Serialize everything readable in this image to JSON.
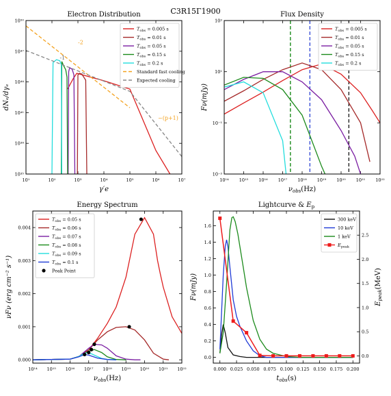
{
  "figure": {
    "suptitle": "C3R15Γ1900"
  },
  "chart_data": [
    {
      "id": "electron",
      "type": "line",
      "title": "Electron Distribution",
      "xlabel": "γ′e",
      "ylabel": "dNₑ/dγₑ",
      "xscale": "log",
      "yscale": "log",
      "xlim": [
        10.0,
        10000000.0
      ],
      "ylim": [
        1e+35,
        1e+50
      ],
      "xticks": [
        10.0,
        100.0,
        1000.0,
        10000.0,
        100000.0,
        1000000.0,
        10000000.0
      ],
      "xtick_labels": [
        "10¹",
        "10²",
        "10³",
        "10⁴",
        "10⁵",
        "10⁶",
        "10⁷"
      ],
      "yticks": [
        1e+35,
        1e+38,
        1e+41,
        1e+44,
        1e+47,
        1e+50
      ],
      "ytick_labels": [
        "10³⁵",
        "10³⁸",
        "10⁴¹",
        "10⁴⁴",
        "10⁴⁷",
        "10⁵⁰"
      ],
      "legend_position": "top-right",
      "series": [
        {
          "name": "T_obs = 0.005 s",
          "label_sym": "T",
          "label_sub": "obs",
          "label_rest": " = 0.005 s",
          "color": "#dc1f1f",
          "x": [
            400,
            650,
            900,
            10000.0,
            100000.0,
            1000000.0,
            3500000.0
          ],
          "y": [
            2e+43,
            2e+44,
            7e+44,
            1.3e+44,
            2e+43,
            2e+37,
            1e+35
          ]
        },
        {
          "name": "T_obs = 0.01 s",
          "label_sym": "T",
          "label_sub": "obs",
          "label_rest": " = 0.01 s",
          "color": "#a52a2a",
          "x": [
            950,
            1000,
            1150,
            1400,
            2000,
            2200
          ],
          "y": [
            1e+35,
            5e+44,
            7e+44,
            6e+44,
            1.5e+44,
            1e+35
          ]
        },
        {
          "name": "T_obs = 0.05 s",
          "label_sym": "T",
          "label_sub": "obs",
          "label_rest": " = 0.05 s",
          "color": "#7b1fa2",
          "x": [
            420,
            440,
            480,
            600,
            700,
            760
          ],
          "y": [
            1e+35,
            1e+45,
            2.5e+45,
            1.7e+45,
            5e+44,
            1e+35
          ]
        },
        {
          "name": "T_obs = 0.15 s",
          "label_sym": "T",
          "label_sub": "obs",
          "label_rest": " = 0.15 s",
          "color": "#1b8a1b",
          "x": [
            230,
            240,
            280,
            340,
            380,
            400
          ],
          "y": [
            1e+35,
            1e+46,
            4e+45,
            1.5e+45,
            3e+44,
            1e+35
          ]
        },
        {
          "name": "T_obs = 0.2 s",
          "label_sym": "T",
          "label_sub": "obs",
          "label_rest": " = 0.2 s",
          "color": "#22dddd",
          "x": [
            100,
            110,
            150,
            200,
            230,
            240
          ],
          "y": [
            1e+35,
            8e+45,
            1.5e+46,
            1.2e+46,
            5e+45,
            1e+35
          ]
        },
        {
          "name": "Standard fast cooling",
          "color": "#f4a21f",
          "dash": "5,3",
          "x": [
            10,
            100000.0
          ],
          "y": [
            3e+49,
            3e+41
          ]
        },
        {
          "name": "Expected cooling",
          "color": "#888888",
          "dash": "5,3",
          "x": [
            10,
            100000.0,
            10000000.0
          ],
          "y": [
            1.2e+47,
            1.2e+43,
            5e+36
          ]
        }
      ],
      "annotations": [
        {
          "text": "-2",
          "color": "#f4a21f",
          "x": 1000.0,
          "y": 5e+47
        },
        {
          "text": "-1",
          "color": "#666666",
          "x": 200,
          "y": 1.5e+46
        },
        {
          "text": "−(p+1)",
          "color": "#f4a21f",
          "x": 1200000.0,
          "y": 2e+40
        }
      ]
    },
    {
      "id": "flux",
      "type": "line",
      "title": "Flux Density",
      "xlabel": "ν_obs(Hz)",
      "ylabel": "Fν(mJy)",
      "xscale": "log",
      "yscale": "log",
      "xlim": [
        100000000000000.0,
        1e+22
      ],
      "ylim": [
        0.001,
        1000.0
      ],
      "xticks": [
        100000000000000.0,
        1000000000000000.0,
        1e+16,
        1e+17,
        1e+18,
        1e+19,
        1e+20,
        1e+21,
        1e+22
      ],
      "xtick_labels": [
        "10¹⁴",
        "10¹⁵",
        "10¹⁶",
        "10¹⁷",
        "10¹⁸",
        "10¹⁹",
        "10²⁰",
        "10²¹",
        "10²²"
      ],
      "yticks": [
        0.001,
        0.1,
        10.0,
        1000.0
      ],
      "ytick_labels": [
        "10⁻³",
        "10⁻¹",
        "10¹",
        "10³"
      ],
      "legend_position": "top-right",
      "vlines": [
        {
          "x": 2.5e+17,
          "color": "#1b8a1b"
        },
        {
          "x": 2.5e+18,
          "color": "#3a4fd6"
        },
        {
          "x": 2.5e+20,
          "color": "#222222"
        }
      ],
      "series": [
        {
          "name": "T_obs = 0.005 s",
          "label_sym": "T",
          "label_sub": "obs",
          "label_rest": " = 0.005 s",
          "color": "#dc1f1f",
          "x": [
            100000000000000.0,
            1000000000000000.0,
            1e+16,
            1e+17,
            1e+18,
            1e+19,
            1e+20,
            1e+21,
            4e+21,
            1e+22
          ],
          "y": [
            0.22,
            0.6,
            1.6,
            4.5,
            12,
            20,
            8,
            1.5,
            0.3,
            0.1
          ]
        },
        {
          "name": "T_obs = 0.01 s",
          "label_sym": "T",
          "label_sub": "obs",
          "label_rest": " = 0.01 s",
          "color": "#a52a2a",
          "x": [
            100000000000000.0,
            1000000000000000.0,
            1e+16,
            1e+17,
            1e+18,
            1e+19,
            1e+20,
            1e+21,
            3e+21
          ],
          "y": [
            0.7,
            1.8,
            5,
            12,
            22,
            12,
            2,
            0.1,
            0.003
          ]
        },
        {
          "name": "T_obs = 0.05 s",
          "label_sym": "T",
          "label_sub": "obs",
          "label_rest": " = 0.05 s",
          "color": "#7b1fa2",
          "x": [
            100000000000000.0,
            1000000000000000.0,
            1e+16,
            1e+17,
            1e+18,
            1e+19,
            1e+20,
            5e+20,
            1e+21
          ],
          "y": [
            2,
            5,
            10,
            10,
            4,
            0.8,
            0.05,
            0.005,
            0.001
          ]
        },
        {
          "name": "T_obs = 0.15 s",
          "label_sym": "T",
          "label_sub": "obs",
          "label_rest": " = 0.15 s",
          "color": "#1b8a1b",
          "x": [
            100000000000000.0,
            1000000000000000.0,
            1e+16,
            1e+17,
            1e+18,
            1e+19,
            1.5e+19
          ],
          "y": [
            3,
            6,
            5.5,
            2,
            0.2,
            0.002,
            0.001
          ]
        },
        {
          "name": "T_obs = 0.2 s",
          "label_sym": "T",
          "label_sub": "obs",
          "label_rest": " = 0.2 s",
          "color": "#22dddd",
          "x": [
            100000000000000.0,
            1000000000000000.0,
            1e+16,
            1e+17,
            1.5e+17
          ],
          "y": [
            2.5,
            4,
            1.5,
            0.02,
            0.001
          ]
        }
      ]
    },
    {
      "id": "energy",
      "type": "line",
      "title": "Energy Spectrum",
      "xlabel": "ν_obs(Hz)",
      "ylabel": "νFν (erg cm⁻² s⁻¹)",
      "xscale": "log",
      "yscale": "linear",
      "xlim": [
        100000000000000.0,
        1e+22
      ],
      "ylim": [
        -0.0001,
        0.0045
      ],
      "xticks": [
        100000000000000.0,
        1000000000000000.0,
        1e+16,
        1e+17,
        1e+18,
        1e+19,
        1e+20,
        1e+21,
        1e+22
      ],
      "xtick_labels": [
        "10¹⁴",
        "10¹⁵",
        "10¹⁶",
        "10¹⁷",
        "10¹⁸",
        "10¹⁹",
        "10²⁰",
        "10²¹",
        "10²²"
      ],
      "yticks": [
        0,
        0.001,
        0.002,
        0.003,
        0.004
      ],
      "ytick_labels": [
        "0.000",
        "0.001",
        "0.002",
        "0.003",
        "0.004"
      ],
      "legend_position": "top-left",
      "series": [
        {
          "name": "T_obs = 0.05 s",
          "label_sym": "T",
          "label_sub": "obs",
          "label_rest": " = 0.05 s",
          "color": "#dc1f1f",
          "x": [
            100000000000000.0,
            1e+16,
            3e+16,
            1e+17,
            3e+17,
            1e+18,
            3e+18,
            1e+19,
            3e+19,
            1e+20,
            3e+20,
            5e+20,
            7e+20,
            1e+21,
            3e+21,
            1e+22
          ],
          "y": [
            0,
            2e-05,
            0.0001,
            0.0003,
            0.00065,
            0.0011,
            0.0016,
            0.0025,
            0.0038,
            0.0043,
            0.0038,
            0.003,
            0.0026,
            0.0022,
            0.0013,
            0.0008
          ]
        },
        {
          "name": "T_obs = 0.06 s",
          "label_sym": "T",
          "label_sub": "obs",
          "label_rest": " = 0.06 s",
          "color": "#a52a2a",
          "x": [
            100000000000000.0,
            1e+16,
            3e+16,
            1e+17,
            3e+17,
            1e+18,
            3e+18,
            1e+19,
            3e+19,
            1e+20,
            3e+20,
            1e+21,
            2e+21
          ],
          "y": [
            0,
            2e-05,
            0.0001,
            0.0003,
            0.0006,
            0.00085,
            0.00098,
            0.001,
            0.0009,
            0.0006,
            0.0002,
            2e-05,
            0
          ]
        },
        {
          "name": "T_obs = 0.07 s",
          "label_sym": "T",
          "label_sub": "obs",
          "label_rest": " = 0.07 s",
          "color": "#7b1fa2",
          "x": [
            100000000000000.0,
            1e+16,
            3e+16,
            1e+17,
            2e+17,
            5e+17,
            1e+18,
            3e+18,
            1e+19,
            3e+19,
            6e+19
          ],
          "y": [
            0,
            2e-05,
            0.0001,
            0.00035,
            0.00047,
            0.00045,
            0.00035,
            0.00012,
            2e-05,
            0,
            0
          ]
        },
        {
          "name": "T_obs = 0.08 s",
          "label_sym": "T",
          "label_sub": "obs",
          "label_rest": " = 0.08 s",
          "color": "#1b8a1b",
          "x": [
            100000000000000.0,
            1e+16,
            3e+16,
            1e+17,
            2e+17,
            5e+17,
            1e+18,
            3e+18,
            1e+19
          ],
          "y": [
            0,
            2e-05,
            0.0001,
            0.00026,
            0.00031,
            0.00022,
            9e-05,
            1e-05,
            0
          ]
        },
        {
          "name": "T_obs = 0.09 s",
          "label_sym": "T",
          "label_sub": "obs",
          "label_rest": " = 0.09 s",
          "color": "#22dddd",
          "x": [
            100000000000000.0,
            1e+16,
            3e+16,
            6e+16,
            1e+17,
            2e+17,
            5e+17,
            1e+18,
            3e+18
          ],
          "y": [
            0,
            2e-05,
            0.0001,
            0.0002,
            0.00022,
            0.00014,
            4e-05,
            1e-05,
            0
          ]
        },
        {
          "name": "T_obs = 0.1 s",
          "label_sym": "T",
          "label_sub": "obs",
          "label_rest": " = 0.1 s",
          "color": "#1f3ad6",
          "x": [
            100000000000000.0,
            1e+16,
            3e+16,
            6e+16,
            1e+17,
            3e+17,
            1e+18,
            3e+18
          ],
          "y": [
            0,
            2e-05,
            9e-05,
            0.00016,
            0.00014,
            5e-05,
            1e-05,
            0
          ]
        }
      ],
      "peak_points": {
        "name": "Peak Point",
        "x": [
          6.5e+19,
          1.5e+19,
          2e+17,
          1.4e+17,
          1e+17,
          6e+16
        ],
        "y": [
          0.00425,
          0.001,
          0.00047,
          0.00031,
          0.00022,
          0.00016
        ]
      }
    },
    {
      "id": "lightcurve",
      "type": "line",
      "title": "Lightcurve & E_p",
      "title_main": "Lightcurve & ",
      "title_sym": "E",
      "title_sub": "p",
      "xlabel": "t_obs(s)",
      "ylabel": "Fν(mJy)",
      "y2label": "E_peak(MeV)",
      "xlim": [
        -0.01,
        0.21
      ],
      "ylim": [
        -0.07,
        1.78
      ],
      "y2lim": [
        -0.15,
        3.0
      ],
      "xticks": [
        0,
        0.025,
        0.05,
        0.075,
        0.1,
        0.125,
        0.15,
        0.175,
        0.2
      ],
      "xtick_labels": [
        "0.000",
        "0.025",
        "0.050",
        "0.075",
        "0.100",
        "0.125",
        "0.150",
        "0.175",
        "0.200"
      ],
      "yticks": [
        0,
        0.2,
        0.4,
        0.6,
        0.8,
        1.0,
        1.2,
        1.4,
        1.6
      ],
      "ytick_labels": [
        "0.0",
        "0.2",
        "0.4",
        "0.6",
        "0.8",
        "1.0",
        "1.2",
        "1.4",
        "1.6"
      ],
      "y2ticks": [
        0,
        0.5,
        1.0,
        1.5,
        2.0,
        2.5
      ],
      "y2tick_labels": [
        "0.0",
        "0.5",
        "1.0",
        "1.5",
        "2.0",
        "2.5"
      ],
      "legend_position": "top-right",
      "series": [
        {
          "name": "300 keV",
          "color": "#111111",
          "x": [
            0,
            0.003,
            0.005,
            0.008,
            0.012,
            0.02,
            0.03,
            0.04,
            0.05,
            0.07,
            0.1,
            0.2
          ],
          "y": [
            0.05,
            0.3,
            0.4,
            0.3,
            0.12,
            0.03,
            0.01,
            0,
            0,
            0,
            0,
            0
          ]
        },
        {
          "name": "10 keV",
          "color": "#1f3ad6",
          "x": [
            0,
            0.005,
            0.008,
            0.01,
            0.012,
            0.015,
            0.02,
            0.025,
            0.03,
            0.04,
            0.05,
            0.06,
            0.07,
            0.1,
            0.2
          ],
          "y": [
            0.1,
            1.0,
            1.35,
            1.43,
            1.35,
            1.1,
            0.7,
            0.5,
            0.38,
            0.2,
            0.08,
            0.02,
            0,
            0,
            0
          ]
        },
        {
          "name": "1 keV",
          "color": "#1b8a1b",
          "x": [
            0,
            0.005,
            0.01,
            0.015,
            0.018,
            0.02,
            0.023,
            0.027,
            0.03,
            0.035,
            0.04,
            0.05,
            0.06,
            0.07,
            0.08,
            0.1,
            0.12,
            0.15,
            0.2
          ],
          "y": [
            0.05,
            0.3,
            0.9,
            1.55,
            1.7,
            1.71,
            1.65,
            1.5,
            1.35,
            1.1,
            0.85,
            0.45,
            0.22,
            0.1,
            0.05,
            0.01,
            0,
            0,
            0
          ]
        }
      ],
      "epeak": {
        "name": "E_peak",
        "label_sym": "E",
        "label_sub": "peak",
        "axis": "right",
        "color": "#ee1c1c",
        "x": [
          0,
          0.02,
          0.04,
          0.06,
          0.08,
          0.1,
          0.12,
          0.14,
          0.16,
          0.18,
          0.2
        ],
        "y": [
          2.85,
          0.72,
          0.48,
          0.01,
          0,
          0,
          0,
          0,
          0,
          0,
          0
        ]
      }
    }
  ]
}
